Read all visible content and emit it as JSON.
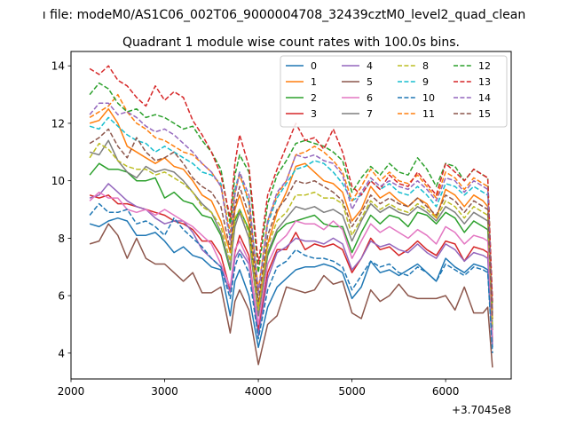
{
  "chart_data": {
    "type": "line",
    "suptitle": "ı file: modeM0/AS1C06_002T06_9000004708_32439cztM0_level2_quad_clean",
    "title": "Quadrant 1 module wise count rates with 100.0s bins.",
    "xlabel": "",
    "ylabel": "",
    "x_offset_label": "+3.7045e8",
    "xlim": [
      2000,
      6700
    ],
    "ylim": [
      3.1,
      14.5
    ],
    "x_ticks": [
      2000,
      3000,
      4000,
      5000,
      6000
    ],
    "y_ticks": [
      4,
      6,
      8,
      10,
      12,
      14
    ],
    "x_tick_labels": [
      "2000",
      "3000",
      "4000",
      "5000",
      "6000"
    ],
    "y_tick_labels": [
      "4",
      "6",
      "8",
      "10",
      "12",
      "14"
    ],
    "grid": false,
    "legend_position": "top-right",
    "legend_columns": 4,
    "x": [
      2200,
      2300,
      2400,
      2500,
      2600,
      2700,
      2800,
      2900,
      3000,
      3100,
      3200,
      3300,
      3400,
      3500,
      3600,
      3700,
      3750,
      3800,
      3900,
      4000,
      4100,
      4200,
      4300,
      4400,
      4500,
      4600,
      4700,
      4800,
      4900,
      5000,
      5100,
      5200,
      5300,
      5400,
      5500,
      5600,
      5700,
      5800,
      5900,
      6000,
      6100,
      6200,
      6300,
      6400,
      6450,
      6500
    ],
    "series": [
      {
        "name": "0",
        "color": "#1f77b4",
        "dash": "solid",
        "values": [
          8.5,
          8.4,
          8.6,
          8.7,
          8.6,
          8.1,
          8.1,
          8.2,
          7.9,
          7.5,
          7.7,
          7.4,
          7.3,
          7.0,
          6.9,
          5.3,
          6.5,
          6.9,
          6.0,
          4.2,
          5.6,
          6.3,
          6.6,
          6.9,
          7.0,
          7.0,
          7.1,
          7.0,
          6.8,
          5.9,
          6.3,
          7.2,
          6.8,
          6.9,
          6.7,
          6.9,
          7.1,
          6.8,
          6.5,
          7.3,
          7.0,
          6.8,
          7.1,
          7.0,
          6.9,
          4.2
        ]
      },
      {
        "name": "1",
        "color": "#ff7f0e",
        "dash": "solid",
        "values": [
          12.0,
          12.1,
          12.5,
          12.0,
          11.2,
          11.0,
          10.8,
          10.6,
          10.8,
          10.5,
          10.4,
          10.0,
          9.5,
          9.3,
          8.6,
          7.5,
          9.0,
          9.5,
          8.5,
          5.6,
          7.8,
          8.9,
          9.6,
          10.5,
          10.6,
          10.3,
          10.0,
          9.9,
          9.6,
          8.6,
          9.0,
          9.8,
          9.4,
          9.6,
          9.3,
          9.1,
          9.4,
          9.2,
          8.7,
          9.7,
          9.5,
          9.1,
          9.5,
          9.3,
          9.1,
          5.2
        ]
      },
      {
        "name": "2",
        "color": "#2ca02c",
        "dash": "solid",
        "values": [
          10.2,
          10.6,
          10.4,
          10.4,
          10.3,
          10.0,
          10.0,
          10.1,
          9.4,
          9.6,
          9.3,
          9.2,
          8.8,
          8.7,
          8.1,
          6.9,
          8.6,
          9.0,
          8.3,
          5.3,
          7.4,
          8.2,
          8.5,
          8.6,
          8.7,
          8.8,
          8.5,
          8.4,
          8.4,
          7.5,
          8.2,
          8.8,
          8.5,
          8.8,
          8.7,
          8.4,
          8.9,
          8.8,
          8.5,
          8.9,
          8.7,
          8.2,
          8.6,
          8.4,
          8.3,
          4.8
        ]
      },
      {
        "name": "3",
        "color": "#d62728",
        "dash": "solid",
        "values": [
          9.5,
          9.4,
          9.5,
          9.2,
          9.2,
          9.1,
          9.0,
          8.9,
          8.8,
          8.6,
          8.5,
          8.3,
          7.9,
          7.9,
          7.4,
          6.2,
          7.5,
          8.1,
          7.4,
          4.8,
          6.8,
          7.6,
          7.6,
          8.2,
          7.6,
          7.8,
          7.7,
          7.8,
          7.6,
          6.8,
          7.3,
          8.0,
          7.6,
          7.7,
          7.4,
          7.6,
          7.9,
          7.6,
          7.4,
          7.9,
          7.8,
          7.2,
          7.7,
          7.6,
          7.5,
          4.4
        ]
      },
      {
        "name": "4",
        "color": "#9467bd",
        "dash": "solid",
        "values": [
          9.4,
          9.5,
          9.9,
          9.6,
          9.3,
          9.1,
          9.0,
          8.7,
          8.5,
          8.6,
          8.6,
          8.2,
          7.6,
          7.3,
          7.0,
          6.1,
          7.3,
          7.6,
          7.1,
          4.6,
          6.6,
          7.5,
          7.7,
          8.0,
          7.9,
          7.9,
          7.8,
          8.0,
          7.8,
          6.9,
          7.3,
          7.9,
          7.7,
          7.8,
          7.6,
          7.5,
          7.8,
          7.5,
          7.3,
          7.8,
          7.6,
          7.2,
          7.5,
          7.4,
          7.3,
          4.3
        ]
      },
      {
        "name": "5",
        "color": "#8c564b",
        "dash": "solid",
        "values": [
          7.8,
          7.9,
          8.5,
          8.1,
          7.3,
          8.0,
          7.3,
          7.1,
          7.1,
          6.8,
          6.5,
          6.8,
          6.1,
          6.1,
          6.3,
          4.7,
          5.8,
          6.2,
          5.5,
          3.6,
          5.0,
          5.3,
          6.3,
          6.2,
          6.1,
          6.2,
          6.7,
          6.4,
          6.5,
          5.4,
          5.2,
          6.2,
          5.8,
          6.0,
          6.4,
          6.0,
          5.9,
          5.9,
          5.9,
          6.0,
          5.5,
          6.3,
          5.4,
          5.4,
          5.6,
          3.5
        ]
      },
      {
        "name": "6",
        "color": "#e377c2",
        "dash": "solid",
        "values": [
          9.3,
          9.6,
          9.4,
          9.4,
          9.0,
          8.9,
          9.0,
          8.8,
          9.0,
          8.8,
          8.6,
          8.4,
          8.1,
          7.8,
          7.1,
          6.3,
          7.6,
          7.9,
          7.2,
          5.0,
          7.1,
          7.8,
          8.1,
          8.6,
          8.5,
          8.5,
          8.3,
          8.6,
          8.3,
          7.3,
          7.9,
          8.5,
          8.2,
          8.4,
          8.2,
          8.0,
          8.3,
          8.1,
          7.8,
          8.4,
          8.2,
          7.8,
          8.1,
          8.0,
          7.9,
          4.6
        ]
      },
      {
        "name": "7",
        "color": "#7f7f7f",
        "dash": "solid",
        "values": [
          11.0,
          10.9,
          11.4,
          10.7,
          10.3,
          10.1,
          10.5,
          10.3,
          10.4,
          10.3,
          10.0,
          9.6,
          9.2,
          8.9,
          8.2,
          7.0,
          8.4,
          8.9,
          8.0,
          5.3,
          7.5,
          8.3,
          8.7,
          9.1,
          9.0,
          9.1,
          8.9,
          9.0,
          8.8,
          7.9,
          8.6,
          9.2,
          8.9,
          9.1,
          8.9,
          8.8,
          9.1,
          8.9,
          8.6,
          9.1,
          8.9,
          8.5,
          8.9,
          8.7,
          8.6,
          4.9
        ]
      },
      {
        "name": "8",
        "color": "#bcbd22",
        "dash": "dashed",
        "values": [
          10.8,
          11.3,
          11.1,
          10.7,
          10.5,
          10.4,
          10.4,
          10.2,
          10.3,
          10.1,
          9.9,
          9.6,
          9.1,
          8.9,
          8.4,
          7.2,
          8.7,
          9.0,
          8.2,
          5.5,
          7.7,
          8.6,
          8.9,
          9.5,
          9.5,
          9.6,
          9.4,
          9.4,
          9.2,
          8.1,
          8.7,
          9.3,
          9.0,
          9.2,
          9.0,
          8.9,
          9.2,
          9.0,
          8.7,
          9.3,
          9.1,
          8.7,
          9.1,
          8.9,
          8.8,
          5.0
        ]
      },
      {
        "name": "9",
        "color": "#17becf",
        "dash": "dashed",
        "values": [
          11.9,
          11.8,
          12.2,
          11.9,
          11.6,
          11.4,
          11.3,
          11.0,
          11.2,
          11.0,
          10.8,
          10.6,
          10.3,
          10.2,
          9.9,
          8.0,
          9.7,
          10.3,
          9.2,
          6.1,
          8.5,
          9.4,
          9.9,
          10.4,
          10.5,
          10.7,
          10.6,
          10.3,
          9.9,
          9.3,
          9.5,
          10.0,
          9.7,
          9.9,
          9.6,
          9.5,
          9.8,
          9.5,
          9.1,
          9.9,
          9.8,
          9.5,
          9.8,
          9.6,
          9.5,
          5.4
        ]
      },
      {
        "name": "10",
        "color": "#1f77b4",
        "dash": "dashed",
        "values": [
          8.8,
          9.2,
          8.9,
          8.9,
          9.0,
          8.5,
          8.6,
          8.4,
          8.1,
          8.7,
          8.3,
          8.0,
          7.7,
          7.3,
          7.0,
          5.9,
          7.0,
          7.5,
          6.8,
          4.5,
          6.2,
          7.0,
          7.2,
          7.6,
          7.4,
          7.3,
          7.3,
          7.2,
          7.0,
          6.2,
          6.7,
          7.2,
          7.0,
          7.1,
          6.8,
          6.7,
          7.0,
          6.8,
          6.5,
          7.1,
          6.9,
          6.7,
          7.0,
          6.9,
          6.8,
          4.0
        ]
      },
      {
        "name": "11",
        "color": "#ff7f0e",
        "dash": "dashed",
        "values": [
          12.2,
          12.4,
          12.6,
          13.0,
          12.4,
          12.0,
          11.8,
          11.5,
          11.4,
          11.2,
          11.0,
          10.9,
          10.6,
          10.3,
          9.8,
          8.2,
          9.6,
          10.2,
          9.3,
          6.2,
          8.6,
          9.5,
          10.0,
          10.9,
          11.0,
          11.2,
          11.0,
          10.7,
          10.3,
          9.3,
          9.8,
          10.4,
          10.0,
          10.3,
          10.0,
          9.9,
          10.2,
          9.8,
          9.4,
          10.3,
          10.1,
          9.7,
          10.1,
          9.9,
          9.8,
          5.5
        ]
      },
      {
        "name": "12",
        "color": "#2ca02c",
        "dash": "dashed",
        "values": [
          13.0,
          13.4,
          13.2,
          12.7,
          12.4,
          12.5,
          12.2,
          12.3,
          12.2,
          12.0,
          11.8,
          11.9,
          11.4,
          11.0,
          10.4,
          8.5,
          10.2,
          10.9,
          10.3,
          6.8,
          9.2,
          10.2,
          10.7,
          11.3,
          11.4,
          11.3,
          11.2,
          11.0,
          10.7,
          9.6,
          10.1,
          10.5,
          10.2,
          10.6,
          10.3,
          10.2,
          10.8,
          10.4,
          9.8,
          10.6,
          10.5,
          10.0,
          10.4,
          10.2,
          10.1,
          5.7
        ]
      },
      {
        "name": "13",
        "color": "#d62728",
        "dash": "dashed",
        "values": [
          13.9,
          13.7,
          14.0,
          13.5,
          13.3,
          12.9,
          12.6,
          13.3,
          12.8,
          13.1,
          12.9,
          12.1,
          11.6,
          11.0,
          10.2,
          8.7,
          10.6,
          11.6,
          10.5,
          7.1,
          9.5,
          10.4,
          11.2,
          12.0,
          11.4,
          11.5,
          11.1,
          11.8,
          11.0,
          9.8,
          9.5,
          10.0,
          9.7,
          10.2,
          9.9,
          9.8,
          10.3,
          9.9,
          9.5,
          10.6,
          10.3,
          10.0,
          10.4,
          10.2,
          10.1,
          5.8
        ]
      },
      {
        "name": "14",
        "color": "#9467bd",
        "dash": "dashed",
        "values": [
          12.3,
          12.7,
          12.7,
          12.3,
          12.4,
          12.2,
          11.9,
          11.7,
          11.8,
          11.6,
          11.3,
          11.0,
          10.6,
          10.3,
          9.8,
          7.9,
          9.5,
          10.3,
          9.5,
          6.1,
          8.6,
          9.6,
          10.0,
          10.9,
          10.8,
          10.9,
          10.7,
          10.6,
          10.2,
          9.0,
          9.6,
          10.1,
          9.8,
          10.0,
          9.8,
          9.7,
          10.0,
          9.7,
          9.3,
          10.1,
          10.0,
          9.6,
          10.0,
          9.8,
          9.7,
          5.4
        ]
      },
      {
        "name": "15",
        "color": "#8c564b",
        "dash": "dashed",
        "values": [
          11.3,
          11.5,
          11.8,
          11.2,
          10.8,
          11.5,
          11.0,
          10.7,
          10.8,
          11.0,
          10.6,
          10.1,
          9.8,
          9.6,
          9.1,
          7.6,
          9.1,
          9.8,
          8.8,
          5.8,
          8.1,
          9.0,
          9.4,
          10.0,
          9.9,
          10.0,
          9.8,
          9.6,
          9.3,
          8.4,
          8.9,
          9.5,
          9.2,
          9.4,
          9.2,
          9.1,
          9.4,
          9.1,
          8.8,
          9.5,
          9.3,
          8.9,
          9.3,
          9.1,
          9.0,
          5.2
        ]
      }
    ]
  }
}
